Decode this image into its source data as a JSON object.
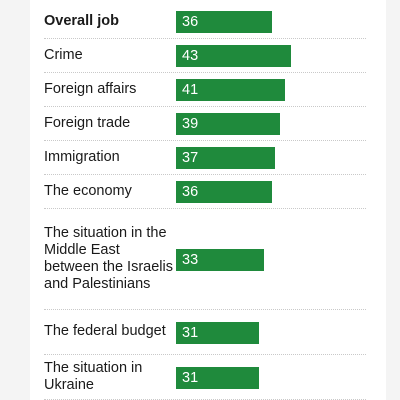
{
  "chart_data": {
    "type": "bar",
    "orientation": "horizontal",
    "color": "#1f8a3c",
    "categories": [
      "Overall job",
      "Crime",
      "Foreign affairs",
      "Foreign trade",
      "Immigration",
      "The economy",
      "The situation in the Middle East between the Israelis and Palestinians",
      "The federal budget",
      "The situation in Ukraine"
    ],
    "values": [
      36,
      43,
      41,
      39,
      37,
      36,
      33,
      31,
      31
    ],
    "value_labels": [
      "36",
      "43",
      "41",
      "39",
      "37",
      "36",
      "33",
      "31",
      "31"
    ],
    "bold_categories": [
      "Overall job"
    ]
  }
}
